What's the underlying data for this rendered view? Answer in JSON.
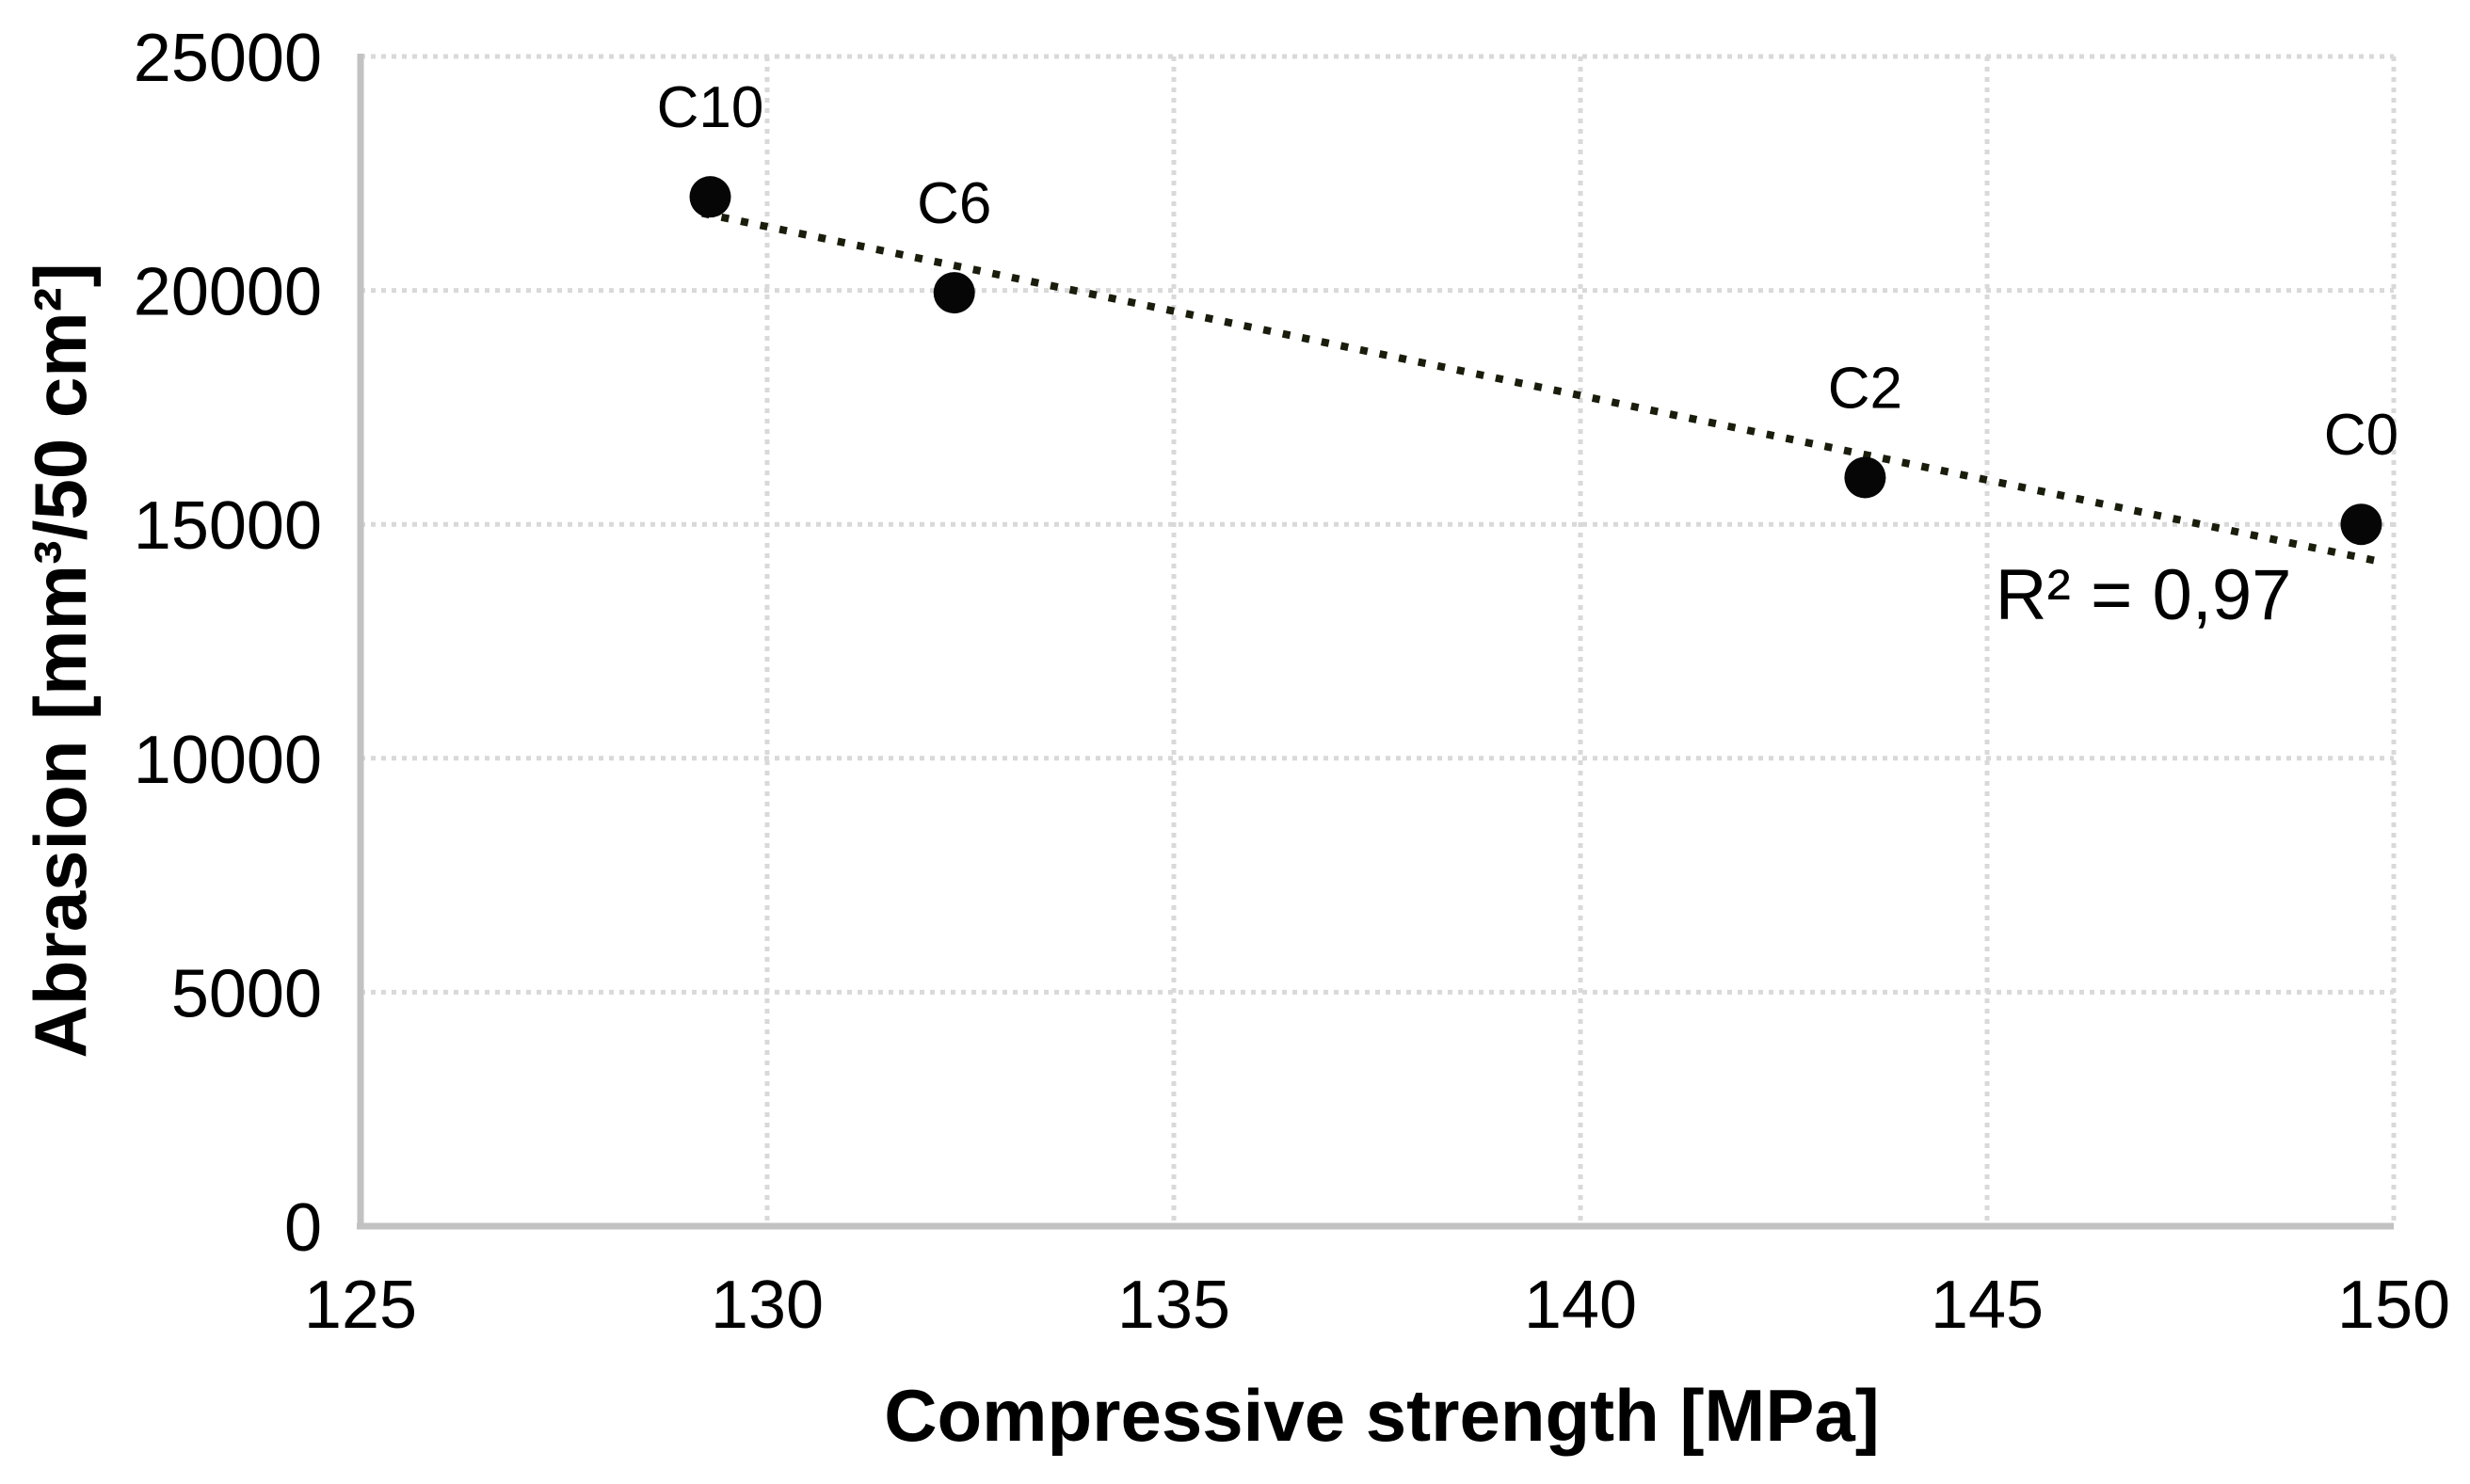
{
  "chart_data": {
    "type": "scatter",
    "title": "",
    "xlabel": "Compressive strength [MPa]",
    "ylabel": "Abrasion [mm³/50 cm²]",
    "xlim": [
      125,
      150
    ],
    "ylim": [
      0,
      25000
    ],
    "xticks": [
      125,
      130,
      135,
      140,
      145,
      150
    ],
    "yticks": [
      0,
      5000,
      10000,
      15000,
      20000,
      25000
    ],
    "grid": true,
    "legend": "none",
    "points": [
      {
        "label": "C10",
        "x": 129.3,
        "y": 22000
      },
      {
        "label": "C6",
        "x": 132.3,
        "y": 19950
      },
      {
        "label": "C2",
        "x": 143.5,
        "y": 16000
      },
      {
        "label": "C0",
        "x": 149.6,
        "y": 15000
      }
    ],
    "trendline": {
      "style": "dotted",
      "x1": 129.2,
      "y1": 21650,
      "x2": 149.9,
      "y2": 14180,
      "r_squared_label": "R² = 0,97",
      "annotation_x": 146.9,
      "annotation_y": 13500
    },
    "colors": {
      "marker": "#060606",
      "trendline": "#191d0b",
      "gridline": "#d9d9d9",
      "axis_line": "#c2c2c2",
      "text": "#000000"
    }
  }
}
